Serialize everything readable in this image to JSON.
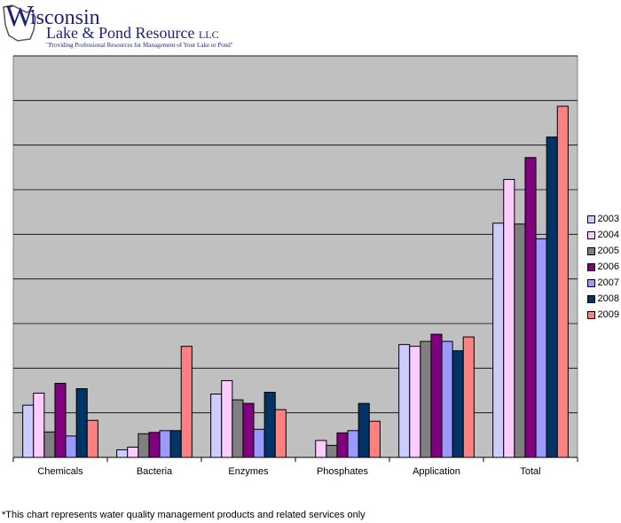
{
  "logo": {
    "w": "W",
    "rest": "isconsin",
    "line2": "Lake & Pond Resource",
    "llc": "LLC",
    "tagline": "\"Providing Professional Resources for Management of Your Lake or Pond\""
  },
  "footnote": "*This chart represents water quality management products and related services only",
  "chart_data": {
    "type": "bar",
    "title": "",
    "xlabel": "",
    "ylabel": "",
    "ylim": [
      0,
      9
    ],
    "grid": true,
    "legend_position": "right",
    "categories": [
      "Chemicals",
      "Bacteria",
      "Enzymes",
      "Phosphates",
      "Application",
      "Total"
    ],
    "series": [
      {
        "name": "2003",
        "color": "#ccccff",
        "values": [
          1.17,
          0.17,
          1.42,
          0,
          2.53,
          5.25
        ]
      },
      {
        "name": "2004",
        "color": "#ffccff",
        "values": [
          1.44,
          0.23,
          1.72,
          0.38,
          2.49,
          6.23
        ]
      },
      {
        "name": "2005",
        "color": "#808080",
        "values": [
          0.57,
          0.53,
          1.29,
          0.27,
          2.6,
          5.23
        ]
      },
      {
        "name": "2006",
        "color": "#800080",
        "values": [
          1.66,
          0.56,
          1.21,
          0.55,
          2.76,
          6.72
        ]
      },
      {
        "name": "2007",
        "color": "#9999ff",
        "values": [
          0.48,
          0.6,
          0.63,
          0.6,
          2.6,
          4.9
        ]
      },
      {
        "name": "2008",
        "color": "#003366",
        "values": [
          1.54,
          0.6,
          1.46,
          1.21,
          2.39,
          7.18
        ]
      },
      {
        "name": "2009",
        "color": "#ff8080",
        "values": [
          0.83,
          2.49,
          1.07,
          0.81,
          2.7,
          7.87
        ]
      }
    ]
  }
}
